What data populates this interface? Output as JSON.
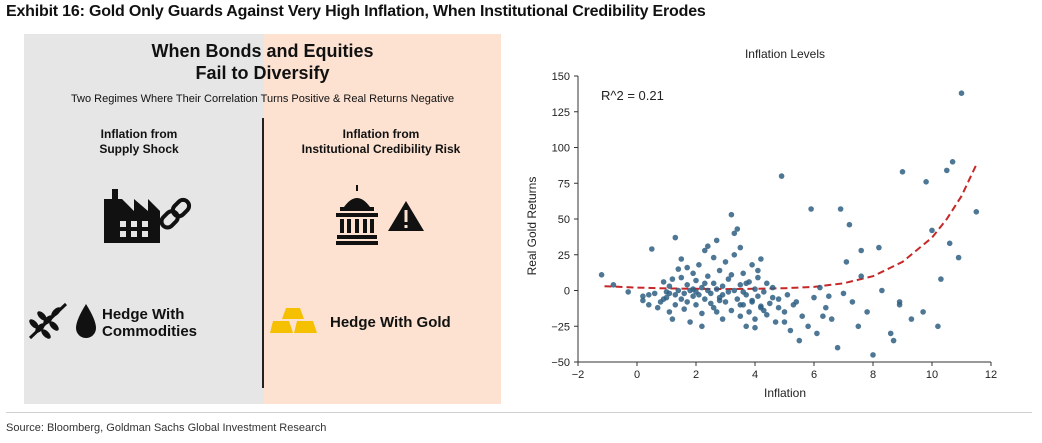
{
  "exhibit_title": "Exhibit 16: Gold Only Guards Against Very High Inflation, When Institutional Credibility Erodes",
  "infographic": {
    "title_line1": "When Bonds and Equities",
    "title_line2": "Fail to Diversify",
    "subtitle": "Two Regimes Where Their Correlation Turns Positive & Real Returns Negative",
    "left": {
      "heading_line1": "Inflation from",
      "heading_line2": "Supply Shock",
      "icon": "factory-chain-icon",
      "hedge_line1": "Hedge With",
      "hedge_line2": "Commodities",
      "hedge_icon": "wheat-oil-drop-icon",
      "bg_color": "#e6e6e6"
    },
    "right": {
      "heading_line1": "Inflation from",
      "heading_line2": "Institutional Credibility Risk",
      "icon": "capitol-warning-icon",
      "hedge_label": "Hedge With Gold",
      "hedge_icon": "gold-bars-icon",
      "bg_color": "#fde2d2"
    }
  },
  "chart_data": {
    "type": "scatter",
    "title": "Inflation Levels",
    "xlabel": "Inflation",
    "ylabel": "Real Gold Returns",
    "xlim": [
      -2,
      12
    ],
    "ylim": [
      -50,
      150
    ],
    "xticks": [
      -2,
      0,
      2,
      4,
      6,
      8,
      10,
      12
    ],
    "yticks": [
      -50,
      -25,
      0,
      25,
      50,
      75,
      100,
      125,
      150
    ],
    "annotation": "R^2 = 0.21",
    "colors": {
      "points": "#2e5f82",
      "trend": "#c62828"
    },
    "trend": {
      "name": "fitted trend (dashed)",
      "x": [
        -1.1,
        0,
        1,
        2,
        3,
        4,
        5,
        6,
        7,
        8,
        9,
        10,
        10.5,
        11,
        11.5
      ],
      "y": [
        3,
        2,
        1.5,
        1.2,
        1,
        1.2,
        1.6,
        2.5,
        5,
        10,
        20,
        37,
        50,
        66,
        88
      ]
    },
    "points": [
      [
        -1.2,
        11
      ],
      [
        -0.8,
        4
      ],
      [
        -0.3,
        -1
      ],
      [
        0.2,
        -7
      ],
      [
        0.2,
        -4
      ],
      [
        0.4,
        -10
      ],
      [
        0.6,
        -2
      ],
      [
        0.7,
        -12
      ],
      [
        0.8,
        -8
      ],
      [
        0.9,
        6
      ],
      [
        0.5,
        29
      ],
      [
        1.0,
        -1
      ],
      [
        1.0,
        -5
      ],
      [
        1.1,
        -15
      ],
      [
        1.1,
        3
      ],
      [
        1.2,
        -20
      ],
      [
        1.2,
        8
      ],
      [
        1.3,
        -3
      ],
      [
        1.3,
        -10
      ],
      [
        1.4,
        0
      ],
      [
        1.4,
        15
      ],
      [
        1.5,
        -6
      ],
      [
        1.5,
        22
      ],
      [
        1.6,
        -2
      ],
      [
        1.6,
        -13
      ],
      [
        1.7,
        4
      ],
      [
        1.7,
        -8
      ],
      [
        1.8,
        0
      ],
      [
        1.8,
        -22
      ],
      [
        1.9,
        12
      ],
      [
        1.9,
        -4
      ],
      [
        2.0,
        -1
      ],
      [
        2.0,
        7
      ],
      [
        2.0,
        -10
      ],
      [
        2.1,
        18
      ],
      [
        2.1,
        -3
      ],
      [
        2.2,
        2
      ],
      [
        2.2,
        -16
      ],
      [
        2.3,
        -6
      ],
      [
        2.3,
        28
      ],
      [
        2.4,
        0
      ],
      [
        2.4,
        10
      ],
      [
        2.5,
        -9
      ],
      [
        2.5,
        -2
      ],
      [
        2.6,
        5
      ],
      [
        2.6,
        -12
      ],
      [
        2.7,
        35
      ],
      [
        2.7,
        1
      ],
      [
        2.8,
        -5
      ],
      [
        2.8,
        14
      ],
      [
        2.9,
        -20
      ],
      [
        2.9,
        3
      ],
      [
        3.0,
        -8
      ],
      [
        3.0,
        20
      ],
      [
        3.1,
        -1
      ],
      [
        3.1,
        8
      ],
      [
        3.2,
        -14
      ],
      [
        3.2,
        53
      ],
      [
        3.3,
        25
      ],
      [
        3.3,
        0
      ],
      [
        3.4,
        -6
      ],
      [
        3.4,
        43
      ],
      [
        3.5,
        -18
      ],
      [
        3.5,
        4
      ],
      [
        3.5,
        30
      ],
      [
        3.6,
        -10
      ],
      [
        3.6,
        12
      ],
      [
        3.7,
        -3
      ],
      [
        3.7,
        -25
      ],
      [
        3.8,
        6
      ],
      [
        3.8,
        -15
      ],
      [
        3.9,
        18
      ],
      [
        3.9,
        -7
      ],
      [
        4.0,
        1
      ],
      [
        4.0,
        -20
      ],
      [
        4.1,
        9
      ],
      [
        4.1,
        -4
      ],
      [
        4.2,
        -12
      ],
      [
        4.2,
        22
      ],
      [
        4.3,
        -1
      ],
      [
        4.4,
        -17
      ],
      [
        4.4,
        5
      ],
      [
        4.5,
        -9
      ],
      [
        4.6,
        2
      ],
      [
        4.7,
        -22
      ],
      [
        4.8,
        -6
      ],
      [
        4.9,
        80
      ],
      [
        5.0,
        -15
      ],
      [
        5.1,
        -3
      ],
      [
        5.2,
        -28
      ],
      [
        5.3,
        -10
      ],
      [
        5.5,
        -35
      ],
      [
        5.6,
        -18
      ],
      [
        5.8,
        -25
      ],
      [
        6.0,
        -5
      ],
      [
        6.1,
        -30
      ],
      [
        6.2,
        2
      ],
      [
        6.4,
        -12
      ],
      [
        6.6,
        -20
      ],
      [
        6.8,
        -40
      ],
      [
        7.0,
        -2
      ],
      [
        7.1,
        20
      ],
      [
        7.3,
        -8
      ],
      [
        7.5,
        -25
      ],
      [
        7.6,
        10
      ],
      [
        7.8,
        -15
      ],
      [
        8.0,
        -45
      ],
      [
        8.3,
        0
      ],
      [
        8.6,
        -30
      ],
      [
        8.9,
        -10
      ],
      [
        1.3,
        37
      ],
      [
        1.5,
        9
      ],
      [
        2.2,
        -25
      ],
      [
        2.4,
        31
      ],
      [
        2.6,
        23
      ],
      [
        2.9,
        -3
      ],
      [
        3.2,
        11
      ],
      [
        3.5,
        -10
      ],
      [
        3.7,
        5
      ],
      [
        3.9,
        -8
      ],
      [
        4.1,
        14
      ],
      [
        4.3,
        -14
      ],
      [
        4.6,
        -5
      ],
      [
        5.0,
        -22
      ],
      [
        5.4,
        -8
      ],
      [
        6.3,
        -18
      ],
      [
        6.5,
        -4
      ],
      [
        5.9,
        57
      ],
      [
        4.8,
        -12
      ],
      [
        3.3,
        40
      ],
      [
        1.9,
        1
      ],
      [
        2.7,
        -15
      ],
      [
        1.1,
        -2
      ],
      [
        0.9,
        -6
      ],
      [
        4.2,
        -11
      ],
      [
        3.6,
        -1
      ],
      [
        2.3,
        5
      ],
      [
        1.7,
        16
      ],
      [
        2.8,
        -7
      ],
      [
        4.0,
        -26
      ],
      [
        7.2,
        46
      ],
      [
        7.6,
        28
      ],
      [
        8.2,
        30
      ],
      [
        8.9,
        -8
      ],
      [
        9.0,
        83
      ],
      [
        9.3,
        -20
      ],
      [
        9.7,
        -15
      ],
      [
        9.8,
        76
      ],
      [
        10.0,
        42
      ],
      [
        10.2,
        -25
      ],
      [
        10.3,
        8
      ],
      [
        10.5,
        84
      ],
      [
        10.6,
        33
      ],
      [
        10.7,
        90
      ],
      [
        10.9,
        23
      ],
      [
        11.0,
        138
      ],
      [
        11.5,
        55
      ],
      [
        6.9,
        57
      ],
      [
        8.7,
        -35
      ],
      [
        0.4,
        -3
      ]
    ]
  },
  "source": "Source: Bloomberg, Goldman Sachs Global Investment Research"
}
